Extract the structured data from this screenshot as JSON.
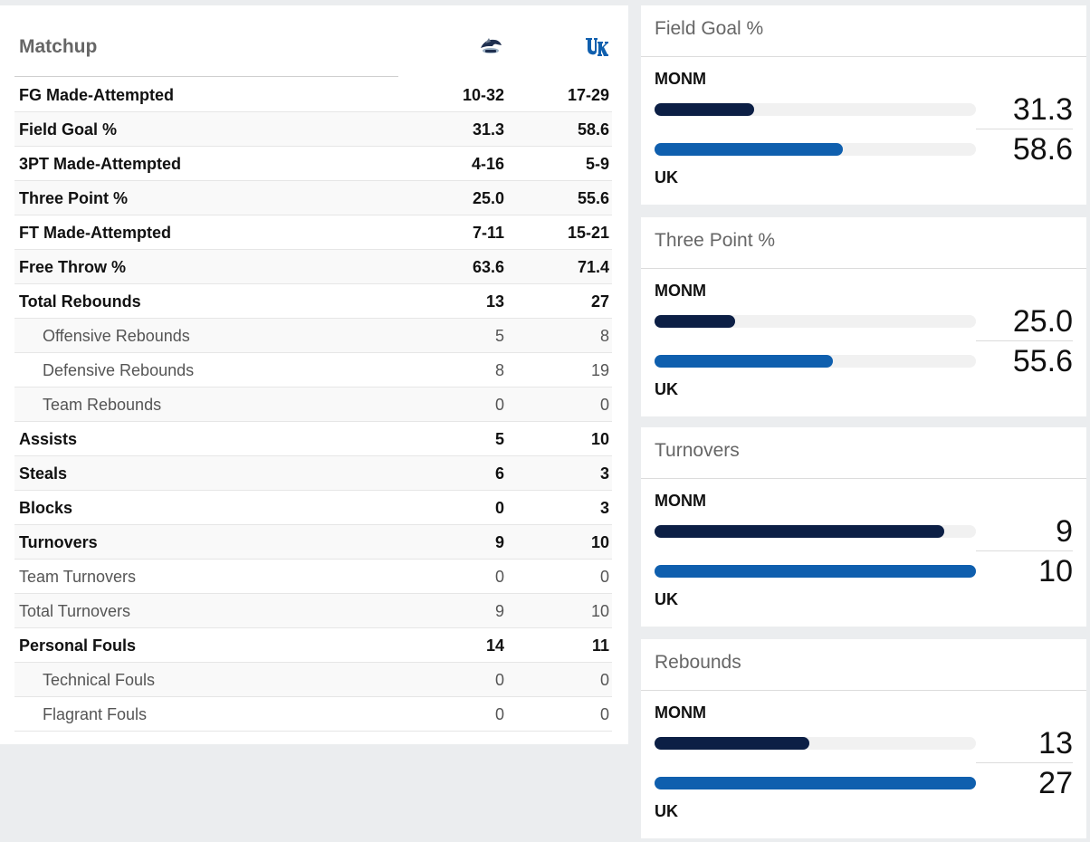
{
  "matchup": {
    "title": "Matchup",
    "teams": [
      {
        "name": "MONM",
        "logo": "monmouth-hawks-logo"
      },
      {
        "name": "UK",
        "logo": "kentucky-uk-logo",
        "color": "#0f5fae"
      }
    ],
    "rows": [
      {
        "label": "FG Made-Attempted",
        "v1": "10-32",
        "v2": "17-29",
        "style": "bold"
      },
      {
        "label": "Field Goal %",
        "v1": "31.3",
        "v2": "58.6",
        "style": "bold"
      },
      {
        "label": "3PT Made-Attempted",
        "v1": "4-16",
        "v2": "5-9",
        "style": "bold"
      },
      {
        "label": "Three Point %",
        "v1": "25.0",
        "v2": "55.6",
        "style": "bold"
      },
      {
        "label": "FT Made-Attempted",
        "v1": "7-11",
        "v2": "15-21",
        "style": "bold"
      },
      {
        "label": "Free Throw %",
        "v1": "63.6",
        "v2": "71.4",
        "style": "bold"
      },
      {
        "label": "Total Rebounds",
        "v1": "13",
        "v2": "27",
        "style": "bold"
      },
      {
        "label": "Offensive Rebounds",
        "v1": "5",
        "v2": "8",
        "style": "sub"
      },
      {
        "label": "Defensive Rebounds",
        "v1": "8",
        "v2": "19",
        "style": "sub"
      },
      {
        "label": "Team Rebounds",
        "v1": "0",
        "v2": "0",
        "style": "sub"
      },
      {
        "label": "Assists",
        "v1": "5",
        "v2": "10",
        "style": "bold"
      },
      {
        "label": "Steals",
        "v1": "6",
        "v2": "3",
        "style": "bold"
      },
      {
        "label": "Blocks",
        "v1": "0",
        "v2": "3",
        "style": "bold"
      },
      {
        "label": "Turnovers",
        "v1": "9",
        "v2": "10",
        "style": "bold"
      },
      {
        "label": "Team Turnovers",
        "v1": "0",
        "v2": "0",
        "style": "plain"
      },
      {
        "label": "Total Turnovers",
        "v1": "9",
        "v2": "10",
        "style": "plain"
      },
      {
        "label": "Personal Fouls",
        "v1": "14",
        "v2": "11",
        "style": "bold"
      },
      {
        "label": "Technical Fouls",
        "v1": "0",
        "v2": "0",
        "style": "sub"
      },
      {
        "label": "Flagrant Fouls",
        "v1": "0",
        "v2": "0",
        "style": "sub"
      }
    ]
  },
  "colors": {
    "monm_bar": "#0c1f45",
    "uk_bar": "#0f5fae",
    "track": "#f1f1f1"
  },
  "stat_cards": [
    {
      "title": "Field Goal %",
      "team1": "MONM",
      "team2": "UK",
      "v1": "31.3",
      "v2": "58.6",
      "fill1": 0.31,
      "fill2": 0.586
    },
    {
      "title": "Three Point %",
      "team1": "MONM",
      "team2": "UK",
      "v1": "25.0",
      "v2": "55.6",
      "fill1": 0.25,
      "fill2": 0.556
    },
    {
      "title": "Turnovers",
      "team1": "MONM",
      "team2": "UK",
      "v1": "9",
      "v2": "10",
      "fill1": 0.9,
      "fill2": 1.0
    },
    {
      "title": "Rebounds",
      "team1": "MONM",
      "team2": "UK",
      "v1": "13",
      "v2": "27",
      "fill1": 0.481,
      "fill2": 1.0
    }
  ]
}
